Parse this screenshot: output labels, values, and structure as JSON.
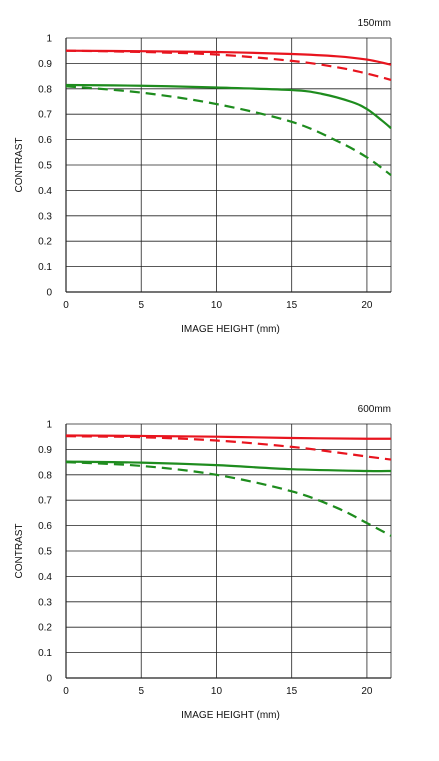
{
  "chart_data": [
    {
      "type": "line",
      "title": "150mm",
      "xlabel": "IMAGE HEIGHT (mm)",
      "ylabel": "CONTRAST",
      "xlim": [
        0,
        21.6
      ],
      "ylim": [
        0,
        1
      ],
      "xticks": [
        0,
        5,
        10,
        15,
        20
      ],
      "xtick_labels": [
        "0",
        "5",
        "10",
        "15",
        "20"
      ],
      "yticks": [
        0,
        0.1,
        0.2,
        0.3,
        0.4,
        0.5,
        0.6,
        0.7,
        0.8,
        0.9,
        1
      ],
      "ytick_labels": [
        "0",
        "0.1",
        "0.2",
        "0.3",
        "0.4",
        "0.5",
        "0.6",
        "0.7",
        "0.8",
        "0.9",
        "1"
      ],
      "grid": true,
      "series": [
        {
          "color": "#e8141e",
          "dash": "solid",
          "x": [
            0,
            5,
            10,
            15,
            18,
            20,
            21.6
          ],
          "y": [
            0.95,
            0.948,
            0.945,
            0.937,
            0.928,
            0.915,
            0.895
          ]
        },
        {
          "color": "#e8141e",
          "dash": "dashed",
          "x": [
            0,
            5,
            10,
            15,
            18,
            20,
            21.6
          ],
          "y": [
            0.95,
            0.945,
            0.935,
            0.91,
            0.885,
            0.86,
            0.835
          ]
        },
        {
          "color": "#1e8c1e",
          "dash": "solid",
          "x": [
            0,
            5,
            10,
            15,
            17,
            19,
            20,
            21,
            21.6
          ],
          "y": [
            0.815,
            0.812,
            0.805,
            0.795,
            0.78,
            0.748,
            0.72,
            0.675,
            0.645
          ]
        },
        {
          "color": "#1e8c1e",
          "dash": "dashed",
          "x": [
            0,
            5,
            10,
            15,
            18,
            20,
            21.6
          ],
          "y": [
            0.81,
            0.785,
            0.74,
            0.67,
            0.595,
            0.53,
            0.46
          ]
        }
      ]
    },
    {
      "type": "line",
      "title": "600mm",
      "xlabel": "IMAGE HEIGHT (mm)",
      "ylabel": "CONTRAST",
      "xlim": [
        0,
        21.6
      ],
      "ylim": [
        0,
        1
      ],
      "xticks": [
        0,
        5,
        10,
        15,
        20
      ],
      "xtick_labels": [
        "0",
        "5",
        "10",
        "15",
        "20"
      ],
      "yticks": [
        0,
        0.1,
        0.2,
        0.3,
        0.4,
        0.5,
        0.6,
        0.7,
        0.8,
        0.9,
        1
      ],
      "ytick_labels": [
        "0",
        "0.1",
        "0.2",
        "0.3",
        "0.4",
        "0.5",
        "0.6",
        "0.7",
        "0.8",
        "0.9",
        "1"
      ],
      "grid": true,
      "series": [
        {
          "color": "#e8141e",
          "dash": "solid",
          "x": [
            0,
            5,
            10,
            15,
            20,
            21.6
          ],
          "y": [
            0.955,
            0.953,
            0.95,
            0.945,
            0.942,
            0.942
          ]
        },
        {
          "color": "#e8141e",
          "dash": "dashed",
          "x": [
            0,
            5,
            10,
            15,
            18,
            20,
            21.6
          ],
          "y": [
            0.952,
            0.948,
            0.935,
            0.91,
            0.888,
            0.872,
            0.86
          ]
        },
        {
          "color": "#1e8c1e",
          "dash": "solid",
          "x": [
            0,
            5,
            10,
            15,
            20,
            21.6
          ],
          "y": [
            0.852,
            0.848,
            0.838,
            0.822,
            0.815,
            0.815
          ]
        },
        {
          "color": "#1e8c1e",
          "dash": "dashed",
          "x": [
            0,
            5,
            10,
            15,
            18,
            20,
            21.6
          ],
          "y": [
            0.85,
            0.835,
            0.8,
            0.735,
            0.67,
            0.61,
            0.56
          ]
        }
      ]
    }
  ]
}
